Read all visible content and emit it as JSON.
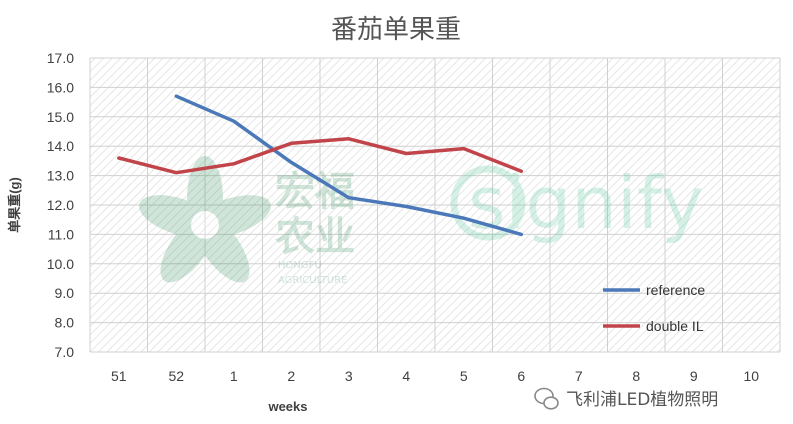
{
  "chart_data": {
    "type": "line",
    "title": "番茄单果重",
    "xlabel": "weeks",
    "ylabel": "单果重(g)",
    "categories": [
      "51",
      "52",
      "1",
      "2",
      "3",
      "4",
      "5",
      "6",
      "7",
      "8",
      "9",
      "10"
    ],
    "ylim": [
      7.0,
      17.0
    ],
    "yticks": [
      "7.0",
      "8.0",
      "9.0",
      "10.0",
      "11.0",
      "12.0",
      "13.0",
      "14.0",
      "15.0",
      "16.0",
      "17.0"
    ],
    "grid": true,
    "legend_position": "bottom-right",
    "series": [
      {
        "name": "reference",
        "color": "#4a78b8",
        "values": [
          null,
          15.7,
          14.85,
          13.45,
          12.25,
          11.95,
          11.55,
          11.0,
          null,
          null,
          null,
          null
        ]
      },
      {
        "name": "double IL",
        "color": "#c0444a",
        "values": [
          13.6,
          13.1,
          13.4,
          14.1,
          14.25,
          13.75,
          13.92,
          13.15,
          null,
          null,
          null,
          null
        ]
      }
    ]
  },
  "watermarks": {
    "logo_text_line1": "宏福",
    "logo_text_line2": "农业",
    "logo_subtext_line1": "HONGFU",
    "logo_subtext_line2": "AGRICULTURE",
    "signify": "signify"
  },
  "footer": {
    "icon": "wechat-icon",
    "text": "飞利浦LED植物照明"
  }
}
